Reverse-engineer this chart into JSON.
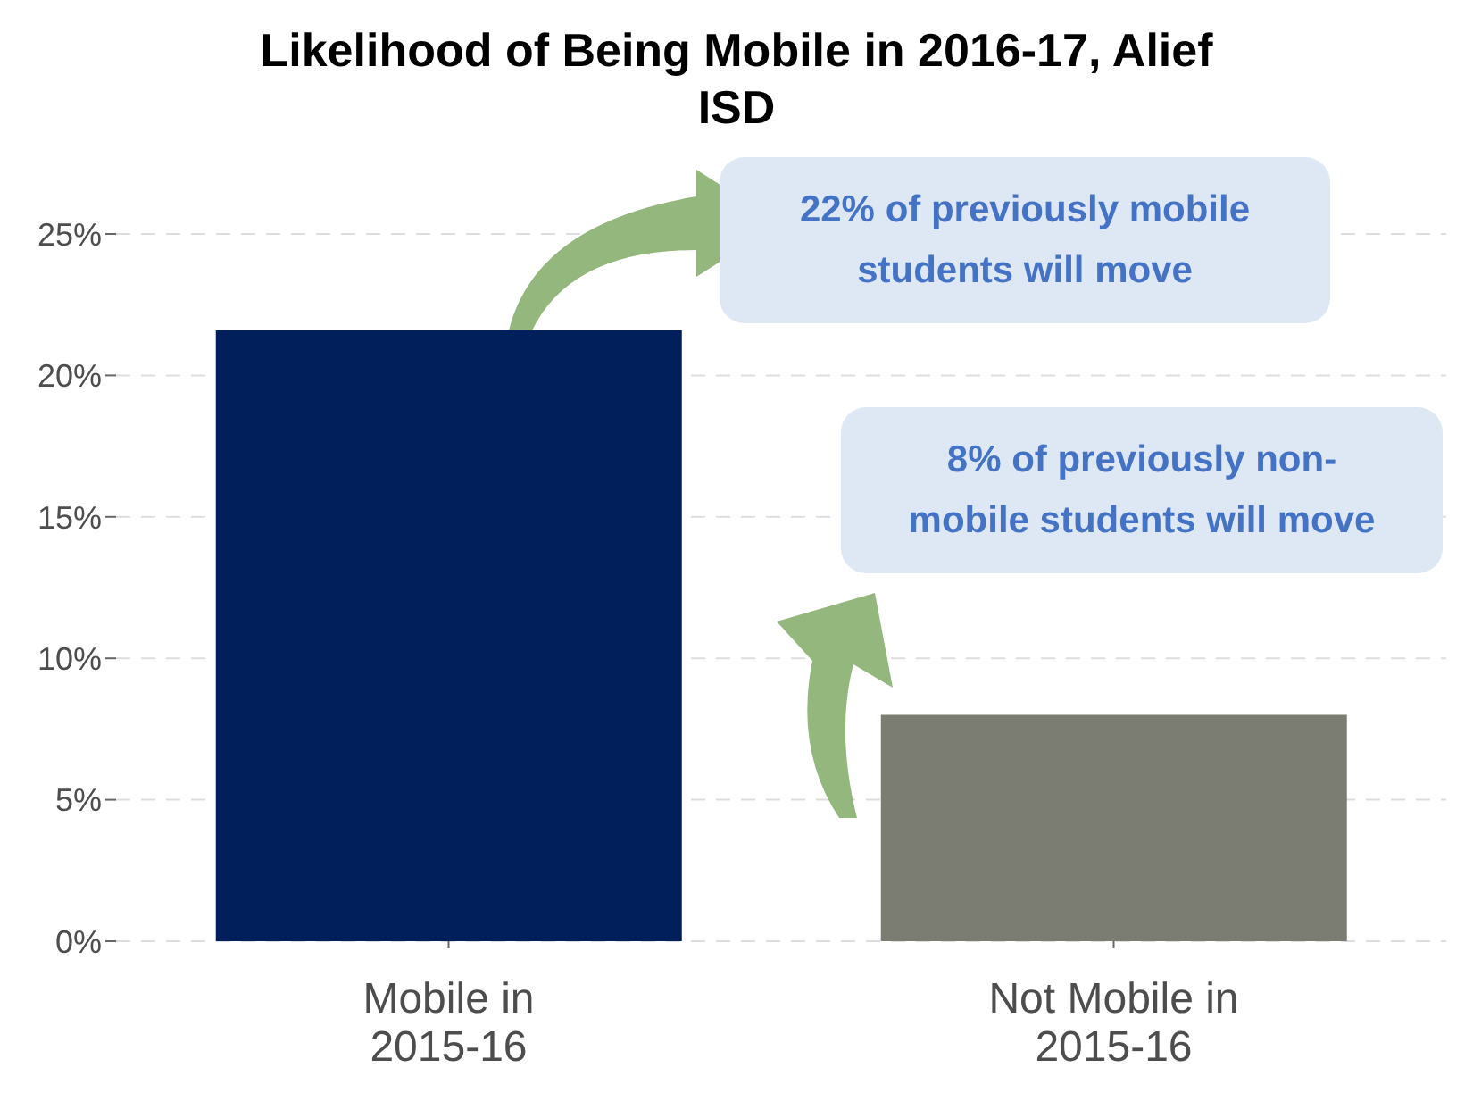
{
  "chart_data": {
    "type": "bar",
    "title": "Likelihood of Being Mobile in 2016-17, Alief ISD",
    "categories": [
      "Mobile in 2015-16",
      "Not Mobile in 2015-16"
    ],
    "values": [
      21.6,
      8.0
    ],
    "colors": [
      "#001f5b",
      "#7b7c72"
    ],
    "ylim": [
      0,
      25
    ],
    "yticks": [
      {
        "value": 0,
        "label": "0%"
      },
      {
        "value": 5,
        "label": "5%"
      },
      {
        "value": 10,
        "label": "10%"
      },
      {
        "value": 15,
        "label": "15%"
      },
      {
        "value": 20,
        "label": "20%"
      },
      {
        "value": 25,
        "label": "25%"
      }
    ],
    "grid": "y",
    "annotations": [
      "22% of previously mobile students will move",
      "8% of previously non-mobile students will move"
    ]
  }
}
